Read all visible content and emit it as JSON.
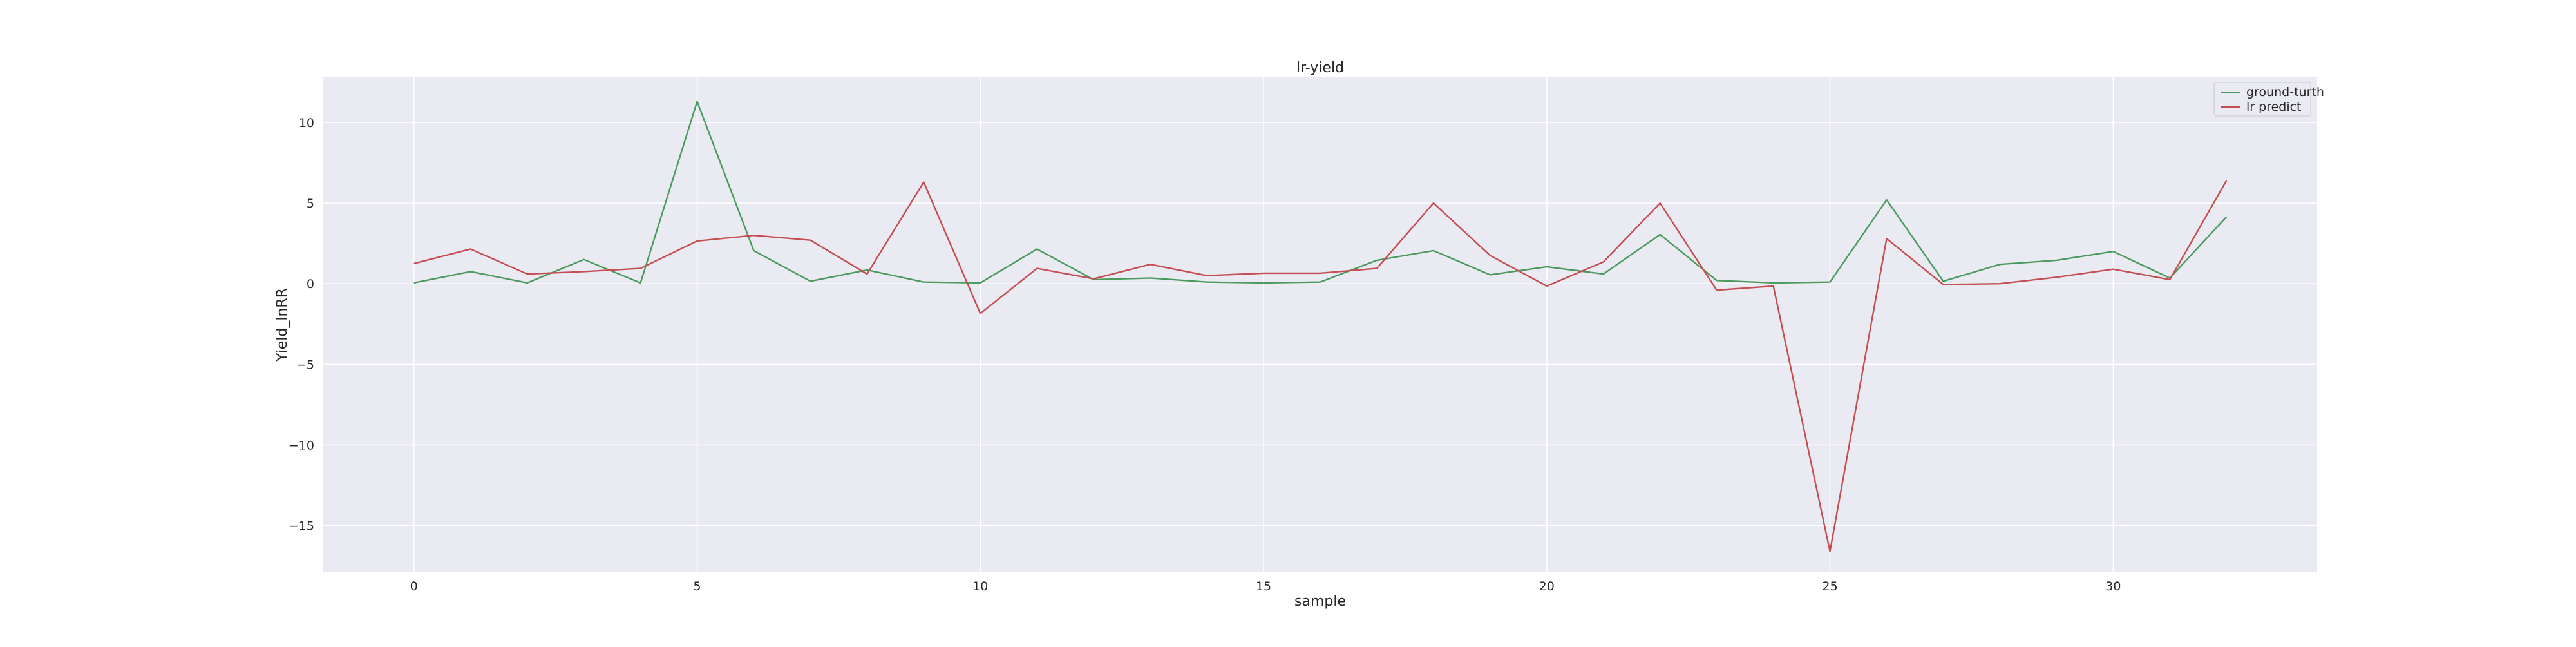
{
  "chart_data": {
    "type": "line",
    "title": "lr-yield",
    "xlabel": "sample",
    "ylabel": "Yield_lnRR",
    "xlim": [
      -1.6,
      33.6
    ],
    "ylim": [
      -17.9,
      12.8
    ],
    "xticks": [
      0,
      5,
      10,
      15,
      20,
      25,
      30
    ],
    "yticks": [
      10,
      5,
      0,
      -5,
      -10,
      -15
    ],
    "ytick_labels": [
      "10",
      "5",
      "0",
      "−5",
      "−10",
      "−15"
    ],
    "grid": true,
    "legend_position": "top-right",
    "x": [
      0,
      1,
      2,
      3,
      4,
      5,
      6,
      7,
      8,
      9,
      10,
      11,
      12,
      13,
      14,
      15,
      16,
      17,
      18,
      19,
      20,
      21,
      22,
      23,
      24,
      25,
      26,
      27,
      28,
      29,
      30,
      31,
      32
    ],
    "series": [
      {
        "name": "ground-turth",
        "color": "#4c9a5e",
        "values": [
          0.05,
          0.75,
          0.05,
          1.5,
          0.05,
          11.3,
          2.05,
          0.15,
          0.85,
          0.1,
          0.05,
          2.15,
          0.25,
          0.35,
          0.1,
          0.05,
          0.1,
          1.45,
          2.05,
          0.55,
          1.05,
          0.6,
          3.05,
          0.2,
          0.05,
          0.1,
          5.2,
          0.15,
          1.2,
          1.45,
          2.0,
          0.35,
          4.15
        ]
      },
      {
        "name": "lr predict",
        "color": "#c44e52",
        "values": [
          1.25,
          2.15,
          0.6,
          0.75,
          0.95,
          2.65,
          3.0,
          2.7,
          0.6,
          6.3,
          -1.85,
          0.95,
          0.3,
          1.2,
          0.5,
          0.65,
          0.65,
          0.95,
          5.0,
          1.75,
          -0.15,
          1.35,
          5.0,
          -0.4,
          -0.15,
          -16.6,
          2.8,
          -0.05,
          0.0,
          0.4,
          0.9,
          0.25,
          6.4
        ]
      }
    ]
  }
}
